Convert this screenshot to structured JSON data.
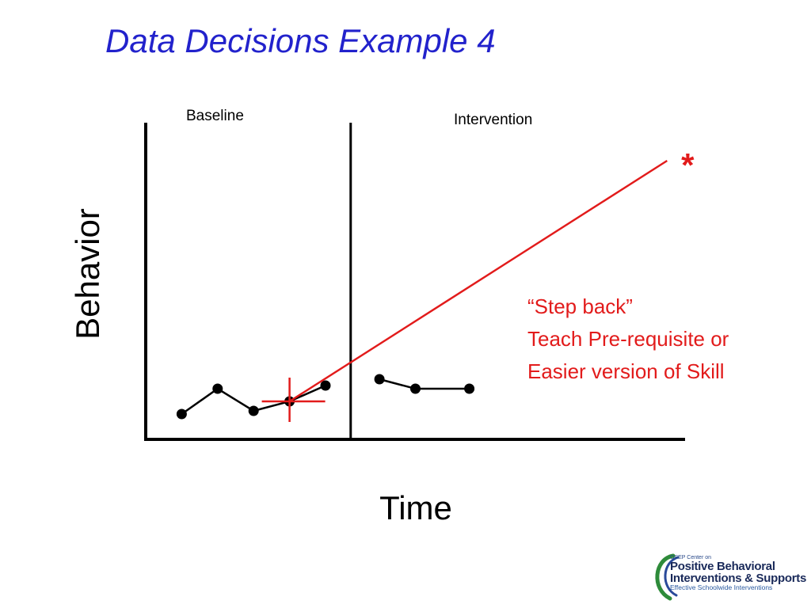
{
  "title": "Data Decisions Example 4",
  "chart_data": {
    "type": "line",
    "xlabel": "Time",
    "ylabel": "Behavior",
    "phases": [
      "Baseline",
      "Intervention"
    ],
    "phase_change_x": 5.7,
    "xlim": [
      0,
      15
    ],
    "ylim": [
      0,
      10
    ],
    "series": [
      {
        "phase": "Baseline",
        "x": [
          1,
          2,
          3,
          4,
          5
        ],
        "y": [
          0.8,
          1.6,
          0.9,
          1.2,
          1.7
        ]
      },
      {
        "phase": "Intervention",
        "x": [
          6.5,
          7.5,
          9
        ],
        "y": [
          1.9,
          1.6,
          1.6
        ]
      }
    ],
    "aimline": {
      "x": [
        4,
        14.5
      ],
      "y": [
        1.2,
        8.8
      ],
      "color": "#e21b1b",
      "end_marker": "*"
    },
    "annotation": {
      "lines": [
        "“Step back”",
        "Teach Pre-requisite or",
        "Easier version of Skill"
      ],
      "color": "#e21b1b"
    }
  },
  "logo": {
    "line1": "OSEP Center on",
    "line2": "Positive Behavioral",
    "line3": "Interventions & Supports",
    "line4": "Effective Schoolwide Interventions"
  }
}
